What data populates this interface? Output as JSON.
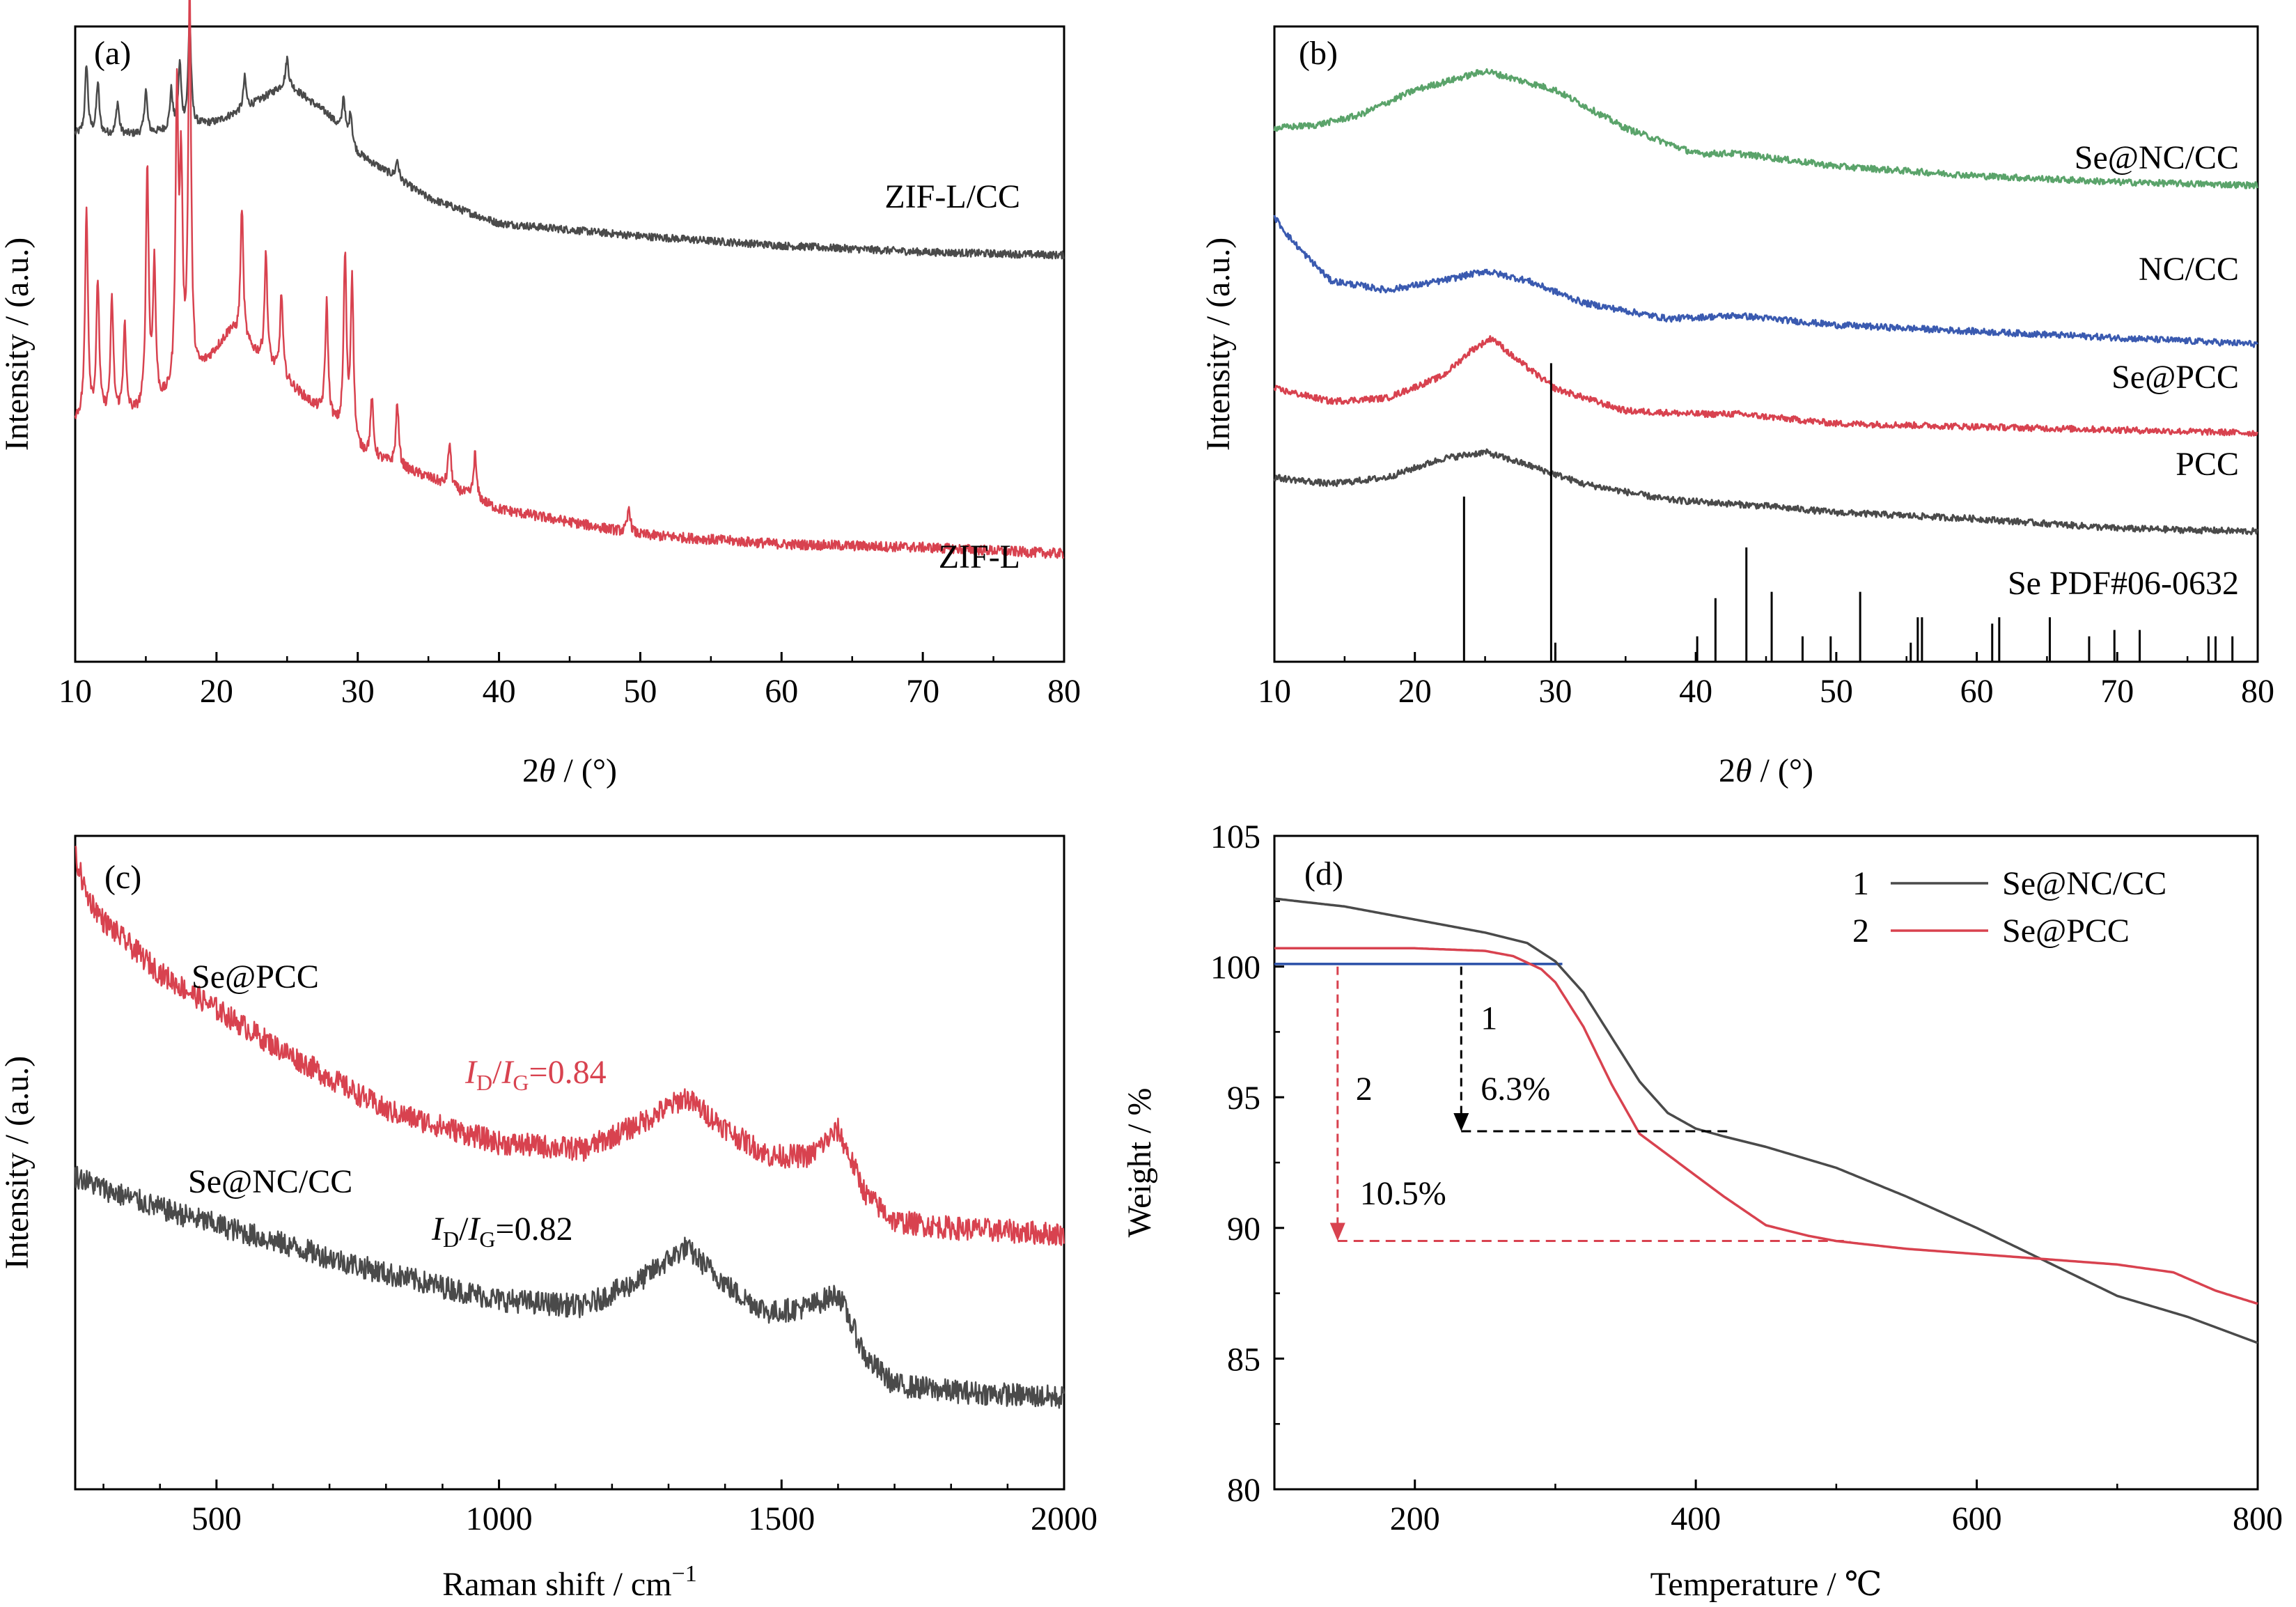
{
  "chart_data": [
    {
      "panel": "(a)",
      "type": "line",
      "xlabel": "2θ / (°)",
      "ylabel": "Intensity / (a.u.)",
      "xlim": [
        10,
        80
      ],
      "xticks": [
        10,
        20,
        30,
        40,
        50,
        60,
        70,
        80
      ],
      "series": [
        {
          "name": "ZIF-L/CC",
          "color": "#4a4a4a",
          "x": [
            10,
            15,
            20,
            22,
            25,
            28,
            30,
            35,
            40,
            45,
            50,
            60,
            70,
            80
          ],
          "y": [
            0.83,
            0.83,
            0.85,
            0.87,
            0.91,
            0.86,
            0.8,
            0.73,
            0.69,
            0.68,
            0.67,
            0.655,
            0.645,
            0.64
          ],
          "peaks": [
            [
              10.8,
              0.11
            ],
            [
              11.6,
              0.08
            ],
            [
              13,
              0.05
            ],
            [
              15,
              0.07
            ],
            [
              16.8,
              0.06
            ],
            [
              17.4,
              0.1
            ],
            [
              18.1,
              0.17
            ],
            [
              22,
              0.05
            ],
            [
              25,
              0.04
            ],
            [
              29,
              0.06
            ],
            [
              29.5,
              0.05
            ],
            [
              32.8,
              0.03
            ]
          ]
        },
        {
          "name": "ZIF-L",
          "color": "#d8424f",
          "x": [
            10,
            15,
            18,
            21,
            25,
            28,
            30,
            35,
            40,
            45,
            50,
            60,
            70,
            80
          ],
          "y": [
            0.38,
            0.39,
            0.43,
            0.52,
            0.44,
            0.38,
            0.33,
            0.29,
            0.24,
            0.22,
            0.2,
            0.185,
            0.18,
            0.17
          ],
          "peaks": [
            [
              10.8,
              0.33
            ],
            [
              11.6,
              0.21
            ],
            [
              12.6,
              0.18
            ],
            [
              13.5,
              0.14
            ],
            [
              15.1,
              0.38
            ],
            [
              15.6,
              0.22
            ],
            [
              17.2,
              0.45
            ],
            [
              17.5,
              0.32
            ],
            [
              18.1,
              0.62
            ],
            [
              21.8,
              0.21
            ],
            [
              23.5,
              0.17
            ],
            [
              24.6,
              0.13
            ],
            [
              27.8,
              0.18
            ],
            [
              29.1,
              0.28
            ],
            [
              29.6,
              0.26
            ],
            [
              31,
              0.09
            ],
            [
              32.8,
              0.1
            ],
            [
              36.5,
              0.07
            ],
            [
              38.3,
              0.07
            ],
            [
              49.2,
              0.04
            ]
          ]
        }
      ],
      "annotations": [
        "ZIF-L/CC",
        "ZIF-L"
      ]
    },
    {
      "panel": "(b)",
      "type": "line",
      "xlabel": "2θ / (°)",
      "ylabel": "Intensity / (a.u.)",
      "xlim": [
        10,
        80
      ],
      "xticks": [
        10,
        20,
        30,
        40,
        50,
        60,
        70,
        80
      ],
      "series": [
        {
          "name": "Se@NC/CC",
          "color": "#5aa36a",
          "x": [
            10,
            13,
            16,
            20,
            25,
            30,
            35,
            40,
            43,
            50,
            60,
            70,
            80
          ],
          "y": [
            0.84,
            0.845,
            0.86,
            0.9,
            0.93,
            0.9,
            0.84,
            0.8,
            0.8,
            0.78,
            0.765,
            0.755,
            0.75
          ]
        },
        {
          "name": "NC/CC",
          "color": "#3a5ab0",
          "x": [
            10,
            11,
            12,
            14,
            18,
            22,
            25,
            28,
            32,
            38,
            43,
            50,
            60,
            70,
            80
          ],
          "y": [
            0.7,
            0.67,
            0.645,
            0.6,
            0.585,
            0.6,
            0.615,
            0.6,
            0.565,
            0.54,
            0.545,
            0.53,
            0.52,
            0.51,
            0.5
          ]
        },
        {
          "name": "Se@PCC",
          "color": "#d8424f",
          "x": [
            10,
            14,
            18,
            22,
            24,
            25.5,
            27,
            30,
            35,
            40,
            43,
            50,
            60,
            70,
            80
          ],
          "y": [
            0.43,
            0.41,
            0.415,
            0.45,
            0.49,
            0.51,
            0.48,
            0.43,
            0.395,
            0.39,
            0.39,
            0.375,
            0.37,
            0.365,
            0.36
          ]
        },
        {
          "name": "PCC",
          "color": "#4a4a4a",
          "x": [
            10,
            14,
            18,
            22,
            25,
            28,
            32,
            38,
            45,
            50,
            60,
            70,
            80
          ],
          "y": [
            0.29,
            0.28,
            0.29,
            0.32,
            0.33,
            0.31,
            0.28,
            0.255,
            0.245,
            0.235,
            0.225,
            0.21,
            0.205
          ]
        }
      ],
      "reference": {
        "name": "Se PDF#06-0632",
        "lines": [
          [
            23.5,
            0.26
          ],
          [
            29.7,
            0.47
          ],
          [
            30,
            0.03
          ],
          [
            40.1,
            0.04
          ],
          [
            41.4,
            0.1
          ],
          [
            43.6,
            0.18
          ],
          [
            45.4,
            0.11
          ],
          [
            47.6,
            0.04
          ],
          [
            49.6,
            0.04
          ],
          [
            51.7,
            0.11
          ],
          [
            55.3,
            0.03
          ],
          [
            55.8,
            0.07
          ],
          [
            56.1,
            0.07
          ],
          [
            61.1,
            0.06
          ],
          [
            61.6,
            0.07
          ],
          [
            65.2,
            0.07
          ],
          [
            68,
            0.04
          ],
          [
            69.8,
            0.05
          ],
          [
            71.6,
            0.05
          ],
          [
            76.5,
            0.04
          ],
          [
            77,
            0.04
          ],
          [
            78.2,
            0.04
          ]
        ]
      },
      "annotations": [
        "Se@NC/CC",
        "NC/CC",
        "Se@PCC",
        "PCC",
        "Se PDF#06-0632"
      ]
    },
    {
      "panel": "(c)",
      "type": "line",
      "xlabel": "Raman shift / cm⁻¹",
      "ylabel": "Intensity / (a.u.)",
      "xlim": [
        250,
        2000
      ],
      "xticks": [
        500,
        1000,
        1500,
        2000
      ],
      "series": [
        {
          "name": "Se@PCC",
          "color": "#d8424f",
          "x": [
            250,
            270,
            300,
            400,
            600,
            800,
            1000,
            1150,
            1250,
            1330,
            1420,
            1480,
            1550,
            1600,
            1650,
            1700,
            1800,
            1900,
            2000
          ],
          "y": [
            0.97,
            0.91,
            0.87,
            0.79,
            0.68,
            0.58,
            0.53,
            0.52,
            0.56,
            0.6,
            0.54,
            0.51,
            0.51,
            0.55,
            0.45,
            0.41,
            0.4,
            0.395,
            0.39
          ]
        },
        {
          "name": "Se@NC/CC",
          "color": "#4a4a4a",
          "x": [
            250,
            300,
            400,
            600,
            800,
            1000,
            1150,
            1250,
            1330,
            1420,
            1480,
            1550,
            1600,
            1650,
            1700,
            1800,
            1900,
            2000
          ],
          "y": [
            0.48,
            0.46,
            0.43,
            0.38,
            0.33,
            0.29,
            0.28,
            0.32,
            0.37,
            0.3,
            0.27,
            0.28,
            0.3,
            0.2,
            0.16,
            0.15,
            0.145,
            0.14
          ]
        }
      ],
      "annotations": [
        {
          "label": "Se@PCC"
        },
        {
          "label": "Se@NC/CC"
        },
        {
          "label_main": "I",
          "sub1": "D",
          "slash": "/",
          "label_main2": "I",
          "sub2": "G",
          "value": "=0.84",
          "color": "#d8424f"
        },
        {
          "label_main": "I",
          "sub1": "D",
          "slash": "/",
          "label_main2": "I",
          "sub2": "G",
          "value": "=0.82",
          "color": "#000000"
        }
      ]
    },
    {
      "panel": "(d)",
      "type": "line",
      "xlabel": "Temperature / ℃",
      "ylabel": "Weight / %",
      "xlim": [
        100,
        800
      ],
      "ylim": [
        80,
        105
      ],
      "xticks": [
        200,
        400,
        600,
        800
      ],
      "yticks": [
        80,
        85,
        90,
        95,
        100,
        105
      ],
      "legend": {
        "placement": "top-right",
        "entries": [
          {
            "num": "1",
            "label": "Se@NC/CC",
            "color": "#4a4a4a"
          },
          {
            "num": "2",
            "label": "Se@PCC",
            "color": "#d8424f"
          }
        ]
      },
      "series": [
        {
          "name": "Se@NC/CC",
          "color": "#4a4a4a",
          "x": [
            100,
            150,
            200,
            250,
            280,
            300,
            320,
            340,
            360,
            380,
            400,
            420,
            450,
            500,
            550,
            600,
            650,
            700,
            750,
            800
          ],
          "y": [
            102.6,
            102.3,
            101.8,
            101.3,
            100.9,
            100.2,
            99.0,
            97.3,
            95.6,
            94.4,
            93.8,
            93.5,
            93.1,
            92.3,
            91.2,
            90.0,
            88.7,
            87.4,
            86.6,
            85.6
          ]
        },
        {
          "name": "Se@PCC",
          "color": "#d8424f",
          "x": [
            100,
            150,
            200,
            250,
            270,
            290,
            300,
            320,
            340,
            360,
            380,
            400,
            420,
            450,
            480,
            500,
            550,
            600,
            650,
            700,
            740,
            770,
            800
          ],
          "y": [
            100.7,
            100.7,
            100.7,
            100.6,
            100.4,
            99.9,
            99.4,
            97.7,
            95.5,
            93.6,
            92.8,
            92.0,
            91.2,
            90.1,
            89.7,
            89.5,
            89.2,
            89.0,
            88.8,
            88.6,
            88.3,
            87.6,
            87.1
          ]
        }
      ],
      "reference_line": {
        "y": 100.1,
        "x_start": 100,
        "x_end": 305,
        "color": "#2a4fa8"
      },
      "annotations": [
        {
          "label": "1",
          "arrow_x": 233,
          "from": 100,
          "to": 93.7,
          "value": "6.3%",
          "color": "#000000"
        },
        {
          "label": "2",
          "arrow_x": 145,
          "from": 100,
          "to": 89.5,
          "value": "10.5%",
          "color": "#d8424f"
        }
      ]
    }
  ]
}
